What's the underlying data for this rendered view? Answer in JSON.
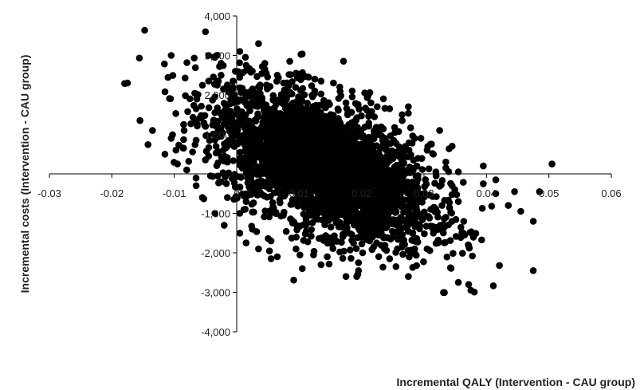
{
  "chart_data": {
    "type": "scatter",
    "title": "",
    "xlabel": "Incremental QALY (Intervention - CAU group)",
    "ylabel": "Incremental costs (Intervention - CAU group)",
    "xlim": [
      -0.03,
      0.06
    ],
    "ylim": [
      -4000,
      4000
    ],
    "x_ticks": [
      -0.03,
      -0.02,
      -0.01,
      0,
      0.01,
      0.02,
      0.03,
      0.04,
      0.05,
      0.06
    ],
    "x_tick_labels": [
      "-0.03",
      "-0.02",
      "-0.01",
      "0",
      "0.01",
      "0.02",
      "0.03",
      "0.04",
      "0.05",
      "0.06"
    ],
    "y_ticks": [
      -4000,
      -3000,
      -2000,
      -1000,
      0,
      1000,
      2000,
      3000,
      4000
    ],
    "y_tick_labels": [
      "-4,000",
      "-3,000",
      "-2,000",
      "-1,000",
      "0",
      "1,000",
      "2,000",
      "3,000",
      "4,000"
    ],
    "grid": false,
    "legend": "none",
    "marker_color": "#000000",
    "series": [
      {
        "points": [
          [
            -0.0175,
            2300
          ],
          [
            -0.0155,
            1350
          ],
          [
            -0.0135,
            1100
          ],
          [
            -0.0115,
            500
          ],
          [
            -0.0095,
            250
          ],
          [
            -0.008,
            100
          ],
          [
            -0.0105,
            3000
          ],
          [
            -0.005,
            3600
          ],
          [
            -0.0045,
            3000
          ],
          [
            0.0035,
            3300
          ],
          [
            0.0005,
            3100
          ],
          [
            -0.0035,
            2950
          ],
          [
            -0.0025,
            2800
          ],
          [
            0.0015,
            2750
          ],
          [
            0.0045,
            2800
          ],
          [
            0.0085,
            2850
          ],
          [
            0.0125,
            2400
          ],
          [
            0.0155,
            2300
          ],
          [
            0.0185,
            2100
          ],
          [
            0.0235,
            1900
          ],
          [
            0.0265,
            1500
          ],
          [
            0.0285,
            900
          ],
          [
            0.0305,
            600
          ],
          [
            0.0335,
            300
          ],
          [
            0.0355,
            50
          ],
          [
            0.0395,
            -250
          ],
          [
            0.0415,
            -500
          ],
          [
            0.0435,
            -800
          ],
          [
            0.0475,
            -1200
          ],
          [
            0.0475,
            -2450
          ],
          [
            0.0355,
            -2750
          ],
          [
            0.0375,
            -2950
          ],
          [
            0.0275,
            -2600
          ],
          [
            0.0195,
            -2450
          ],
          [
            0.0135,
            -2300
          ],
          [
            0.0055,
            -2150
          ],
          [
            0.0035,
            -1900
          ],
          [
            0.0005,
            -1500
          ],
          [
            -0.002,
            -1300
          ],
          [
            -0.0035,
            -1000
          ],
          [
            -0.0055,
            -600
          ],
          [
            -0.0065,
            -300
          ],
          [
            0.0415,
            -150
          ],
          [
            0.0445,
            -450
          ],
          [
            0.0395,
            200
          ],
          [
            0.0505,
            250
          ],
          [
            0.0485,
            -450
          ],
          [
            0.0455,
            -950
          ],
          [
            0.0365,
            -1550
          ],
          [
            0.0305,
            -1900
          ],
          [
            0.0255,
            -2350
          ],
          [
            0.0175,
            -2600
          ],
          [
            0.0105,
            -2400
          ],
          [
            0.0065,
            -2100
          ],
          [
            0.0015,
            -1750
          ],
          [
            -0.0035,
            1950
          ],
          [
            -0.0065,
            1650
          ],
          [
            -0.0085,
            1250
          ],
          [
            -0.0045,
            2350
          ],
          [
            0.0025,
            2600
          ],
          [
            0.0095,
            2550
          ],
          [
            0.0205,
            2050
          ],
          [
            0.0275,
            1700
          ],
          [
            0.0325,
            1100
          ],
          [
            0.0345,
            700
          ],
          [
            0.0045,
            2650
          ],
          [
            0.0115,
            2450
          ],
          [
            0.0165,
            2200
          ],
          [
            0.0215,
            1800
          ],
          [
            0.0245,
            1650
          ],
          [
            0.0065,
            2500
          ],
          [
            0.0135,
            2350
          ],
          [
            0.0185,
            1950
          ],
          [
            0.0225,
            1700
          ],
          [
            0.0265,
            1350
          ],
          [
            0.0295,
            900
          ],
          [
            0.0315,
            500
          ],
          [
            0.0335,
            150
          ],
          [
            0.0345,
            -300
          ],
          [
            0.0355,
            -700
          ],
          [
            0.0335,
            -1100
          ],
          [
            0.0315,
            -1500
          ],
          [
            0.0285,
            -1900
          ],
          [
            0.0245,
            -2150
          ],
          [
            0.0195,
            -2250
          ],
          [
            0.0145,
            -2100
          ],
          [
            0.0095,
            -1900
          ],
          [
            0.0055,
            -1700
          ],
          [
            0.0025,
            -1400
          ],
          [
            0.0005,
            -1000
          ],
          [
            -0.0015,
            -600
          ],
          [
            -0.0025,
            -200
          ],
          [
            -0.0015,
            300
          ],
          [
            -0.0005,
            800
          ],
          [
            0.0005,
            1300
          ],
          [
            0.0015,
            1800
          ],
          [
            0.0035,
            2200
          ],
          [
            0.0075,
            2300
          ],
          [
            0.0125,
            2100
          ],
          [
            0.0175,
            1800
          ],
          [
            -0.0085,
            650
          ],
          [
            -0.0105,
            900
          ],
          [
            -0.0075,
            1900
          ],
          [
            -0.0055,
            1450
          ],
          [
            -0.0065,
            850
          ],
          [
            -0.0045,
            450
          ],
          [
            -0.0025,
            950
          ],
          [
            -0.0035,
            1550
          ],
          [
            -0.0015,
            2250
          ],
          [
            -0.0025,
            2500
          ],
          [
            -0.0005,
            1800
          ],
          [
            -0.0005,
            1100
          ],
          [
            0.0005,
            400
          ],
          [
            -0.0005,
            -100
          ],
          [
            0.0015,
            -700
          ]
        ]
      }
    ],
    "cloud": {
      "center": [
        0.014,
        200
      ],
      "count": 3200,
      "sd_x": 0.0085,
      "sd_y": 950,
      "correlation": -0.55
    }
  }
}
